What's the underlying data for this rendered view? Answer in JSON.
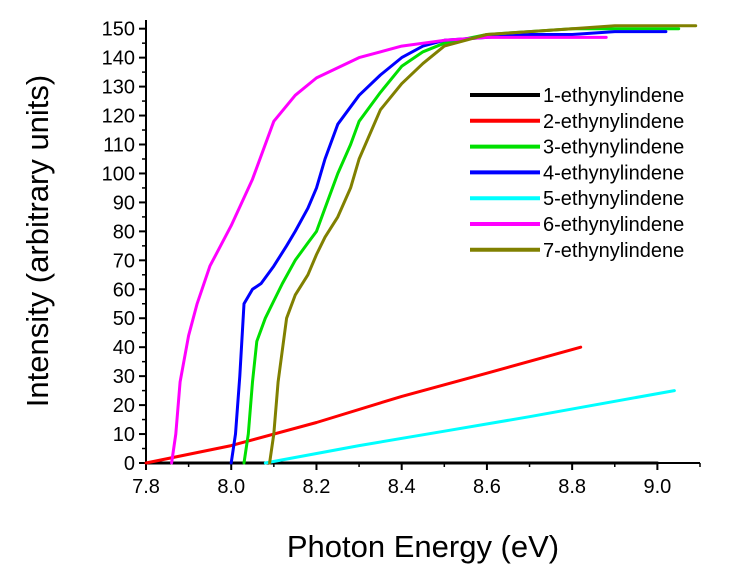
{
  "chart_data": {
    "type": "line",
    "title": "",
    "xlabel": "Photon Energy (eV)",
    "ylabel": "Intensity (arbitrary units)",
    "xlim": [
      7.8,
      9.1
    ],
    "ylim": [
      0,
      153
    ],
    "xticks": [
      7.8,
      8.0,
      8.2,
      8.4,
      8.6,
      8.8,
      9.0
    ],
    "xtick_labels": [
      "7.8",
      "8.0",
      "8.2",
      "8.4",
      "8.6",
      "8.8",
      "9.0"
    ],
    "yticks": [
      0,
      10,
      20,
      30,
      40,
      50,
      60,
      70,
      80,
      90,
      100,
      110,
      120,
      130,
      140,
      150
    ],
    "ytick_labels": [
      "0",
      "10",
      "20",
      "30",
      "40",
      "50",
      "60",
      "70",
      "80",
      "90",
      "100",
      "110",
      "120",
      "130",
      "140",
      "150"
    ],
    "grid": false,
    "legend_position": "right",
    "series": [
      {
        "name": "1-ethynylindene",
        "color": "#000000",
        "x": [
          7.8,
          9.0
        ],
        "y": [
          0,
          0
        ]
      },
      {
        "name": "2-ethynylindene",
        "color": "#ff0000",
        "x": [
          7.8,
          8.0,
          8.2,
          8.4,
          8.6,
          8.82
        ],
        "y": [
          0,
          6,
          14,
          23,
          31,
          40
        ]
      },
      {
        "name": "3-ethynylindene",
        "color": "#00e000",
        "x": [
          8.03,
          8.04,
          8.05,
          8.06,
          8.08,
          8.1,
          8.12,
          8.15,
          8.18,
          8.2,
          8.22,
          8.25,
          8.28,
          8.3,
          8.35,
          8.4,
          8.45,
          8.5,
          8.6,
          8.7,
          8.8,
          8.9,
          9.0,
          9.05
        ],
        "y": [
          0,
          10,
          28,
          42,
          50,
          56,
          62,
          70,
          76,
          80,
          88,
          100,
          110,
          118,
          128,
          137,
          142,
          145,
          148,
          149,
          150,
          150,
          150,
          150
        ]
      },
      {
        "name": "4-ethynylindene",
        "color": "#0000ff",
        "x": [
          8.0,
          8.01,
          8.02,
          8.03,
          8.05,
          8.07,
          8.1,
          8.13,
          8.15,
          8.18,
          8.2,
          8.22,
          8.25,
          8.3,
          8.35,
          8.4,
          8.45,
          8.5,
          8.6,
          8.7,
          8.8,
          8.9,
          9.02
        ],
        "y": [
          0,
          10,
          30,
          55,
          60,
          62,
          68,
          75,
          80,
          88,
          95,
          105,
          117,
          127,
          134,
          140,
          144,
          146,
          147,
          148,
          148,
          149,
          149
        ]
      },
      {
        "name": "5-ethynylindene",
        "color": "#00ffff",
        "x": [
          8.08,
          8.3,
          8.5,
          8.7,
          9.04
        ],
        "y": [
          0,
          6,
          11,
          16,
          25
        ]
      },
      {
        "name": "6-ethynylindene",
        "color": "#ff00ff",
        "x": [
          7.86,
          7.87,
          7.88,
          7.9,
          7.92,
          7.95,
          8.0,
          8.05,
          8.1,
          8.15,
          8.2,
          8.3,
          8.4,
          8.5,
          8.6,
          8.7,
          8.8,
          8.88
        ],
        "y": [
          0,
          10,
          28,
          44,
          55,
          68,
          82,
          98,
          118,
          127,
          133,
          140,
          144,
          146,
          147,
          147,
          147,
          147
        ]
      },
      {
        "name": "7-ethynylindene",
        "color": "#808000",
        "x": [
          8.09,
          8.1,
          8.11,
          8.13,
          8.15,
          8.18,
          8.2,
          8.22,
          8.25,
          8.28,
          8.3,
          8.35,
          8.4,
          8.45,
          8.5,
          8.6,
          8.7,
          8.8,
          8.9,
          9.0,
          9.09
        ],
        "y": [
          0,
          10,
          28,
          50,
          58,
          65,
          72,
          78,
          85,
          95,
          105,
          122,
          131,
          138,
          144,
          148,
          149,
          150,
          151,
          151,
          151
        ]
      }
    ]
  }
}
